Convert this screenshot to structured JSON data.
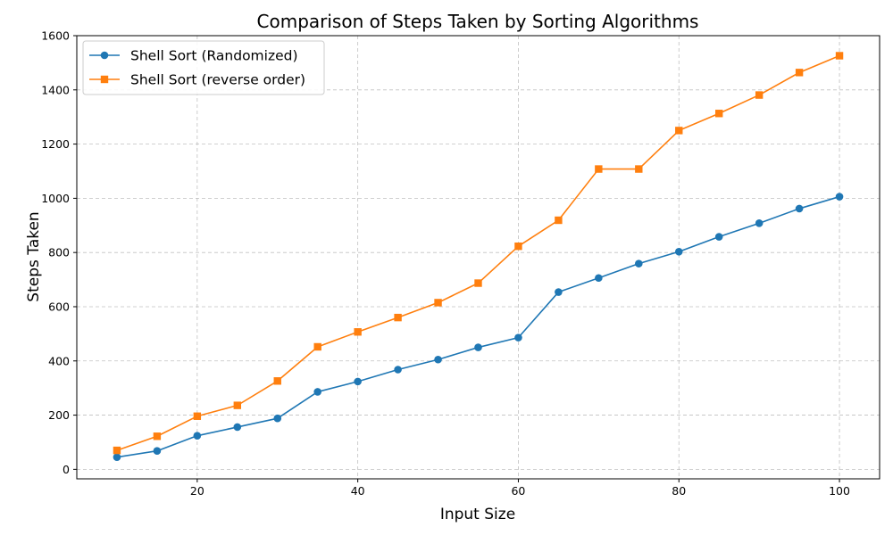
{
  "chart_data": {
    "type": "line",
    "title": "Comparison of Steps Taken by Sorting Algorithms",
    "xlabel": "Input Size",
    "ylabel": "Steps Taken",
    "xlim": [
      5,
      105
    ],
    "ylim": [
      -35,
      1600
    ],
    "xticks": [
      20,
      40,
      60,
      80,
      100
    ],
    "yticks": [
      0,
      200,
      400,
      600,
      800,
      1000,
      1200,
      1400,
      1600
    ],
    "grid": true,
    "legend_position": "top-left",
    "x": [
      10,
      15,
      20,
      25,
      30,
      35,
      40,
      45,
      50,
      55,
      60,
      65,
      70,
      75,
      80,
      85,
      90,
      95,
      100
    ],
    "series": [
      {
        "name": "Shell Sort (Randomized)",
        "color": "#1f77b4",
        "marker": "circle",
        "values": [
          45,
          68,
          124,
          156,
          188,
          286,
          324,
          368,
          405,
          450,
          486,
          654,
          706,
          759,
          803,
          858,
          908,
          962,
          1006
        ]
      },
      {
        "name": "Shell Sort (reverse order)",
        "color": "#ff7f0e",
        "marker": "square",
        "values": [
          70,
          122,
          196,
          236,
          326,
          452,
          507,
          560,
          615,
          687,
          823,
          919,
          1108,
          1108,
          1250,
          1313,
          1381,
          1464,
          1526
        ]
      }
    ]
  }
}
